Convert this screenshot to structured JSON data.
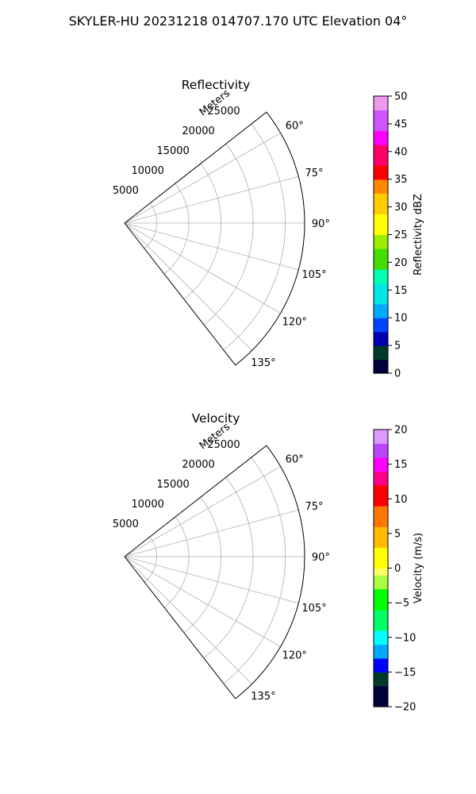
{
  "figure_title": "SKYLER-HU  20231218  014707.170 UTC Elevation 04°",
  "chart_data": [
    {
      "type": "heatmap",
      "projection": "polar-sector",
      "title": "Reflectivity",
      "radial_label": "Meters",
      "radial_ticks": [
        "5000",
        "10000",
        "15000",
        "20000",
        "25000"
      ],
      "r_range": [
        0,
        28000
      ],
      "azimuth_range_deg": [
        52,
        142
      ],
      "azimuth_ticks": [
        "60°",
        "75°",
        "90°",
        "105°",
        "120°",
        "135°"
      ],
      "grid": true,
      "colorbar": {
        "label": "Reflectivity dBZ",
        "range": [
          0,
          50
        ],
        "ticks": [
          "0",
          "5",
          "10",
          "15",
          "20",
          "25",
          "30",
          "35",
          "40",
          "45",
          "50"
        ]
      }
    },
    {
      "type": "heatmap",
      "projection": "polar-sector",
      "title": "Velocity",
      "radial_label": "Meters",
      "radial_ticks": [
        "5000",
        "10000",
        "15000",
        "20000",
        "25000"
      ],
      "r_range": [
        0,
        28000
      ],
      "azimuth_range_deg": [
        52,
        142
      ],
      "azimuth_ticks": [
        "60°",
        "75°",
        "90°",
        "105°",
        "120°",
        "135°"
      ],
      "grid": true,
      "colorbar": {
        "label": "Velocity (m/s)",
        "range": [
          -20,
          20
        ],
        "ticks": [
          "−20",
          "−15",
          "−10",
          "−5",
          "0",
          "5",
          "10",
          "15",
          "20"
        ]
      }
    }
  ]
}
